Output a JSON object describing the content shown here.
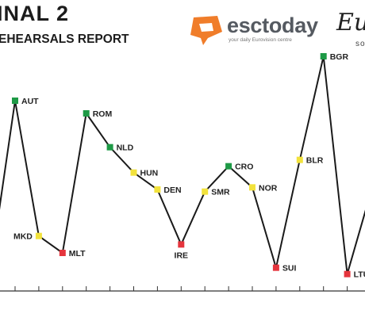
{
  "header": {
    "title": "INAL 2",
    "subtitle": "EHEARSALS REPORT"
  },
  "brand": {
    "name": "esctoday",
    "tagline": "your daily Eurovision centre",
    "icon": "chat-bubble-icon",
    "icon_color": "#f07d2a",
    "partner_logo_text": "Eu",
    "partner_logo_subtext": "so"
  },
  "colors": {
    "green": "#1e9a46",
    "yellow": "#f2e23c",
    "red": "#e5353d",
    "line": "#1a1a1a",
    "axis": "#333333"
  },
  "chart_data": {
    "type": "line",
    "title": "",
    "xlabel": "",
    "ylabel": "",
    "categories": [
      "AUT",
      "MKD",
      "MLT",
      "ROM",
      "NLD",
      "HUN",
      "DEN",
      "IRE",
      "SMR",
      "CRO",
      "NOR",
      "SUI",
      "BLR",
      "BGR",
      "LTU"
    ],
    "series": [
      {
        "values": [
          9.0,
          2.6,
          1.8,
          8.4,
          6.8,
          5.6,
          4.8,
          2.2,
          4.7,
          5.9,
          4.9,
          1.1,
          6.2,
          11.1,
          0.8
        ],
        "status": [
          "green",
          "yellow",
          "red",
          "green",
          "green",
          "yellow",
          "yellow",
          "red",
          "yellow",
          "green",
          "yellow",
          "red",
          "yellow",
          "green",
          "red"
        ]
      }
    ],
    "ylim": [
      0,
      12
    ],
    "grid": false,
    "legend": "none"
  }
}
